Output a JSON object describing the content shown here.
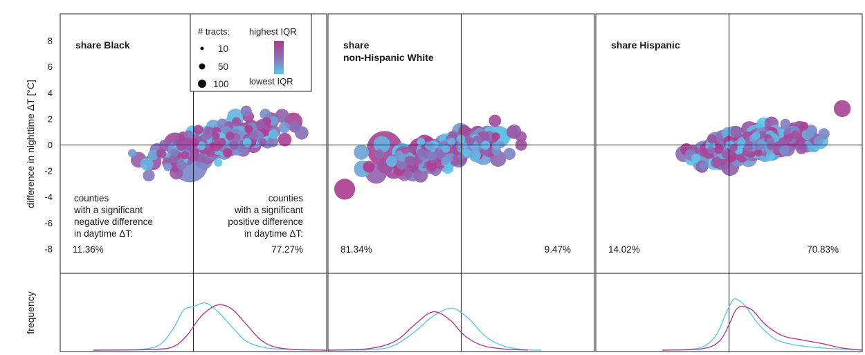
{
  "y_axis_label": "difference in nighttime ΔT [°C]",
  "freq_axis_label": "frequency",
  "y_ticks": [
    8,
    6,
    4,
    2,
    0,
    -2,
    -4,
    -6,
    -8
  ],
  "legend": {
    "size_title": "# tracts:",
    "sizes": [
      10,
      50,
      100
    ],
    "color_high": "highest IQR",
    "color_low": "lowest IQR",
    "color_high_hex": "#b23a8e",
    "color_low_hex": "#5cc8ec"
  },
  "annotations": {
    "left_text": [
      "counties",
      "with a significant",
      "negative difference",
      "in daytime ΔT:"
    ],
    "right_text": [
      "counties",
      "with a significant",
      "positive difference",
      "in daytime ΔT:"
    ]
  },
  "chart_data": [
    {
      "type": "scatter",
      "title_lines": [
        "share Black"
      ],
      "ylim": [
        -10,
        10
      ],
      "percent_left": "11.36%",
      "percent_right": "77.27%",
      "cluster": {
        "x_center": 0.35,
        "x_spread": 0.85,
        "slope": 1.35,
        "y_offset": 0.2,
        "y_noise": 0.55,
        "n": 260,
        "x_min": -1.1,
        "x_max": 1.7
      },
      "big_points": [
        {
          "x": -0.05,
          "y": -1.5,
          "tracts": 100,
          "iqr": 0.35
        },
        {
          "x": 0.25,
          "y": -0.2,
          "tracts": 40,
          "iqr": 0.1
        },
        {
          "x": 0.55,
          "y": 0.3,
          "tracts": 35,
          "iqr": 0.85
        },
        {
          "x": 1.0,
          "y": 0.9,
          "tracts": 30,
          "iqr": 0.8
        },
        {
          "x": 1.5,
          "y": 1.8,
          "tracts": 22,
          "iqr": 0.9
        }
      ],
      "density": {
        "high": [
          [
            -1.5,
            0
          ],
          [
            -0.6,
            0.01
          ],
          [
            -0.3,
            0.05
          ],
          [
            -0.1,
            0.2
          ],
          [
            0.1,
            0.45
          ],
          [
            0.3,
            0.6
          ],
          [
            0.45,
            0.62
          ],
          [
            0.6,
            0.55
          ],
          [
            0.8,
            0.35
          ],
          [
            1.0,
            0.15
          ],
          [
            1.2,
            0.05
          ],
          [
            1.5,
            0.01
          ],
          [
            2.0,
            0
          ]
        ],
        "low": [
          [
            -1.5,
            0
          ],
          [
            -0.8,
            0.01
          ],
          [
            -0.5,
            0.08
          ],
          [
            -0.3,
            0.3
          ],
          [
            -0.15,
            0.55
          ],
          [
            0.0,
            0.6
          ],
          [
            0.15,
            0.65
          ],
          [
            0.25,
            0.62
          ],
          [
            0.4,
            0.5
          ],
          [
            0.6,
            0.3
          ],
          [
            0.8,
            0.12
          ],
          [
            1.1,
            0.03
          ],
          [
            1.5,
            0.01
          ],
          [
            2.0,
            0
          ]
        ]
      }
    },
    {
      "type": "scatter",
      "title_lines": [
        "share",
        "non-Hispanic White"
      ],
      "ylim": [
        -10,
        10
      ],
      "percent_left": "81.34%",
      "percent_right": "9.47%",
      "cluster": {
        "x_center": -0.25,
        "x_spread": 0.85,
        "slope": 1.1,
        "y_offset": -0.5,
        "y_noise": 0.55,
        "n": 260,
        "x_min": -1.5,
        "x_max": 0.9
      },
      "big_points": [
        {
          "x": -1.15,
          "y": -0.3,
          "tracts": 100,
          "iqr": 0.9
        },
        {
          "x": -1.75,
          "y": -3.4,
          "tracts": 30,
          "iqr": 0.95
        },
        {
          "x": -0.9,
          "y": -0.9,
          "tracts": 45,
          "iqr": 0.6
        },
        {
          "x": -0.5,
          "y": -0.5,
          "tracts": 35,
          "iqr": 0.8
        },
        {
          "x": -0.1,
          "y": 0.1,
          "tracts": 28,
          "iqr": 0.7
        }
      ],
      "density": {
        "high": [
          [
            -2.0,
            0
          ],
          [
            -1.4,
            0.02
          ],
          [
            -1.0,
            0.12
          ],
          [
            -0.7,
            0.35
          ],
          [
            -0.5,
            0.5
          ],
          [
            -0.35,
            0.52
          ],
          [
            -0.15,
            0.4
          ],
          [
            0.05,
            0.2
          ],
          [
            0.3,
            0.07
          ],
          [
            0.6,
            0.02
          ],
          [
            1.0,
            0
          ]
        ],
        "low": [
          [
            -2.0,
            0
          ],
          [
            -1.3,
            0.01
          ],
          [
            -1.0,
            0.07
          ],
          [
            -0.7,
            0.25
          ],
          [
            -0.45,
            0.45
          ],
          [
            -0.2,
            0.57
          ],
          [
            -0.05,
            0.55
          ],
          [
            0.15,
            0.4
          ],
          [
            0.35,
            0.2
          ],
          [
            0.6,
            0.07
          ],
          [
            0.9,
            0.01
          ],
          [
            1.2,
            0
          ]
        ]
      }
    },
    {
      "type": "scatter",
      "title_lines": [
        "share Hispanic"
      ],
      "ylim": [
        -10,
        10
      ],
      "percent_left": "14.02%",
      "percent_right": "70.83%",
      "cluster": {
        "x_center": 0.35,
        "x_spread": 0.8,
        "slope": 0.9,
        "y_offset": 0.0,
        "y_noise": 0.5,
        "n": 250,
        "x_min": -0.75,
        "x_max": 1.65
      },
      "big_points": [
        {
          "x": -0.2,
          "y": -0.8,
          "tracts": 65,
          "iqr": 0.05
        },
        {
          "x": 0.35,
          "y": -0.3,
          "tracts": 40,
          "iqr": 0.85
        },
        {
          "x": 0.75,
          "y": 0.2,
          "tracts": 70,
          "iqr": 0.9
        },
        {
          "x": 1.0,
          "y": 0.7,
          "tracts": 55,
          "iqr": 0.88
        },
        {
          "x": 1.7,
          "y": 2.8,
          "tracts": 18,
          "iqr": 0.9
        }
      ],
      "density": {
        "high": [
          [
            -1.0,
            0
          ],
          [
            -0.4,
            0.02
          ],
          [
            -0.15,
            0.12
          ],
          [
            0.0,
            0.35
          ],
          [
            0.1,
            0.55
          ],
          [
            0.2,
            0.6
          ],
          [
            0.35,
            0.55
          ],
          [
            0.55,
            0.35
          ],
          [
            0.8,
            0.2
          ],
          [
            1.1,
            0.14
          ],
          [
            1.4,
            0.09
          ],
          [
            1.7,
            0.03
          ],
          [
            2.0,
            0
          ]
        ],
        "low": [
          [
            -1.0,
            0
          ],
          [
            -0.45,
            0.03
          ],
          [
            -0.2,
            0.2
          ],
          [
            -0.05,
            0.5
          ],
          [
            0.05,
            0.68
          ],
          [
            0.12,
            0.7
          ],
          [
            0.25,
            0.6
          ],
          [
            0.45,
            0.35
          ],
          [
            0.7,
            0.15
          ],
          [
            1.0,
            0.07
          ],
          [
            1.4,
            0.03
          ],
          [
            1.8,
            0.01
          ],
          [
            2.0,
            0
          ]
        ]
      }
    }
  ]
}
